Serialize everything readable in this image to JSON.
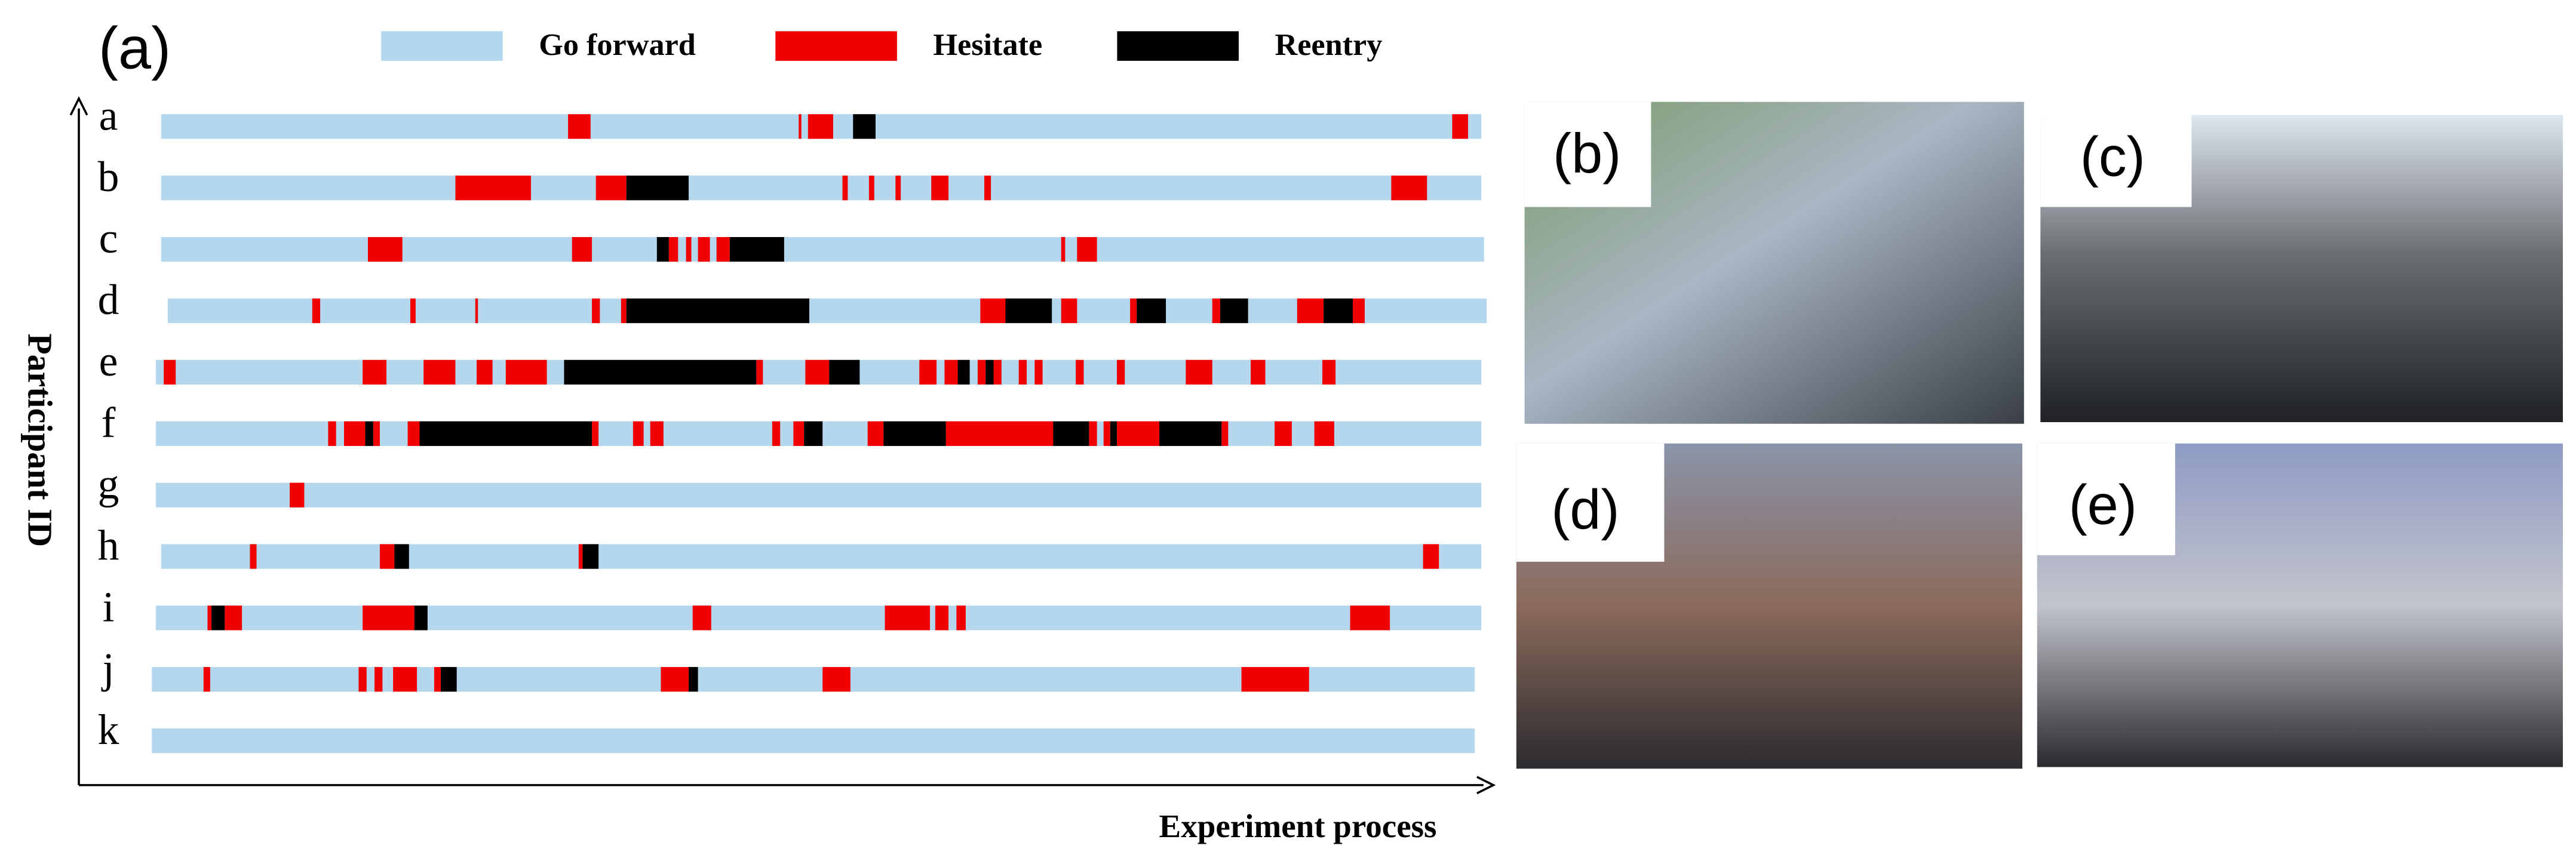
{
  "chart_data": {
    "type": "timeline",
    "panel_label": "(a)",
    "y_label": "Participant ID",
    "x_label": "Experiment process",
    "xlim": [
      -1,
      101
    ],
    "series": [
      {
        "name": "Go forward",
        "color": "#b4d7ee"
      },
      {
        "name": "Hesitate",
        "color": "#f20000"
      },
      {
        "name": "Reentry",
        "color": "#000000"
      }
    ],
    "participants": [
      {
        "id": "a",
        "span": [
          0,
          99.6
        ],
        "hesitate": [
          [
            30.7,
            32.4
          ],
          [
            48.1,
            48.3
          ],
          [
            48.8,
            50.7
          ],
          [
            97.4,
            98.6
          ]
        ],
        "reentry": [
          [
            52.2,
            53.9
          ]
        ]
      },
      {
        "id": "b",
        "span": [
          0,
          99.6
        ],
        "hesitate": [
          [
            22.2,
            27.9
          ],
          [
            32.8,
            35.1
          ],
          [
            51.4,
            51.8
          ],
          [
            53.4,
            53.8
          ],
          [
            55.4,
            55.8
          ],
          [
            58.1,
            59.4
          ],
          [
            62.1,
            62.6
          ],
          [
            92.8,
            95.5
          ]
        ],
        "reentry": [
          [
            35.1,
            39.8
          ]
        ]
      },
      {
        "id": "c",
        "span": [
          0,
          99.8
        ],
        "hesitate": [
          [
            15.6,
            18.2
          ],
          [
            31.0,
            32.5
          ],
          [
            38.3,
            39.0
          ],
          [
            39.6,
            40.0
          ],
          [
            40.5,
            41.4
          ],
          [
            41.9,
            42.9
          ],
          [
            67.9,
            68.2
          ],
          [
            69.1,
            70.6
          ]
        ],
        "reentry": [
          [
            37.4,
            38.3
          ],
          [
            42.9,
            47.0
          ]
        ]
      },
      {
        "id": "d",
        "span": [
          0.5,
          100
        ],
        "hesitate": [
          [
            11.4,
            12.0
          ],
          [
            18.8,
            19.2
          ],
          [
            23.7,
            23.9
          ],
          [
            32.5,
            33.1
          ],
          [
            34.7,
            35.1
          ],
          [
            61.8,
            63.7
          ],
          [
            67.9,
            69.1
          ],
          [
            73.1,
            73.6
          ],
          [
            79.3,
            79.9
          ],
          [
            85.7,
            87.7
          ],
          [
            89.9,
            90.8
          ]
        ],
        "reentry": [
          [
            35.1,
            48.9
          ],
          [
            63.7,
            67.2
          ],
          [
            73.6,
            75.8
          ],
          [
            79.9,
            82.0
          ],
          [
            87.7,
            89.9
          ]
        ]
      },
      {
        "id": "e",
        "span": [
          -0.4,
          99.6
        ],
        "hesitate": [
          [
            0.2,
            1.1
          ],
          [
            15.2,
            17.0
          ],
          [
            19.8,
            22.2
          ],
          [
            23.8,
            25.0
          ],
          [
            26.0,
            29.1
          ],
          [
            44.9,
            45.4
          ],
          [
            48.6,
            50.4
          ],
          [
            57.2,
            58.5
          ],
          [
            59.1,
            60.1
          ],
          [
            61.6,
            62.2
          ],
          [
            62.8,
            63.4
          ],
          [
            64.7,
            65.3
          ],
          [
            65.9,
            66.5
          ],
          [
            69.0,
            69.6
          ],
          [
            72.1,
            72.7
          ],
          [
            77.3,
            79.3
          ],
          [
            82.2,
            83.3
          ],
          [
            87.6,
            88.6
          ]
        ],
        "reentry": [
          [
            30.4,
            44.9
          ],
          [
            50.4,
            52.7
          ],
          [
            60.1,
            61.0
          ],
          [
            62.2,
            62.8
          ]
        ]
      },
      {
        "id": "f",
        "span": [
          -0.4,
          99.6
        ],
        "hesitate": [
          [
            12.6,
            13.2
          ],
          [
            13.8,
            15.4
          ],
          [
            16.0,
            16.5
          ],
          [
            18.6,
            19.5
          ],
          [
            32.5,
            33.0
          ],
          [
            35.6,
            36.4
          ],
          [
            36.9,
            37.9
          ],
          [
            46.1,
            46.7
          ],
          [
            47.7,
            48.5
          ],
          [
            53.3,
            54.5
          ],
          [
            59.2,
            67.3
          ],
          [
            70.0,
            70.6
          ],
          [
            71.1,
            71.6
          ],
          [
            72.1,
            75.3
          ],
          [
            80.0,
            80.5
          ],
          [
            84.0,
            85.3
          ],
          [
            87.0,
            88.5
          ]
        ],
        "reentry": [
          [
            15.4,
            16.0
          ],
          [
            19.5,
            32.5
          ],
          [
            48.5,
            49.9
          ],
          [
            54.5,
            59.2
          ],
          [
            67.3,
            70.0
          ],
          [
            71.6,
            72.1
          ],
          [
            75.3,
            80.0
          ]
        ]
      },
      {
        "id": "g",
        "span": [
          -0.4,
          99.6
        ],
        "hesitate": [
          [
            9.7,
            10.8
          ]
        ],
        "reentry": []
      },
      {
        "id": "h",
        "span": [
          0,
          99.6
        ],
        "hesitate": [
          [
            6.7,
            7.2
          ],
          [
            16.5,
            17.6
          ],
          [
            31.5,
            31.8
          ],
          [
            95.2,
            96.4
          ]
        ],
        "reentry": [
          [
            17.6,
            18.7
          ],
          [
            31.8,
            33.0
          ]
        ]
      },
      {
        "id": "i",
        "span": [
          -0.4,
          99.6
        ],
        "hesitate": [
          [
            3.5,
            3.8
          ],
          [
            4.8,
            6.1
          ],
          [
            15.2,
            19.1
          ],
          [
            40.1,
            41.5
          ],
          [
            54.6,
            58.0
          ],
          [
            58.4,
            59.4
          ],
          [
            60.0,
            60.7
          ],
          [
            89.7,
            92.7
          ]
        ],
        "reentry": [
          [
            3.8,
            4.8
          ],
          [
            19.1,
            20.1
          ]
        ]
      },
      {
        "id": "j",
        "span": [
          -0.7,
          99.1
        ],
        "hesitate": [
          [
            3.2,
            3.7
          ],
          [
            14.9,
            15.5
          ],
          [
            16.1,
            16.7
          ],
          [
            17.5,
            19.3
          ],
          [
            20.6,
            21.1
          ],
          [
            37.7,
            39.8
          ],
          [
            49.9,
            52.0
          ],
          [
            81.5,
            86.6
          ]
        ],
        "reentry": [
          [
            21.1,
            22.3
          ],
          [
            39.8,
            40.5
          ]
        ]
      },
      {
        "id": "k",
        "span": [
          -0.7,
          99.1
        ],
        "hesitate": [],
        "reentry": []
      }
    ]
  },
  "photos": [
    {
      "label": "(b)"
    },
    {
      "label": "(c)"
    },
    {
      "label": "(d)"
    },
    {
      "label": "(e)"
    }
  ]
}
